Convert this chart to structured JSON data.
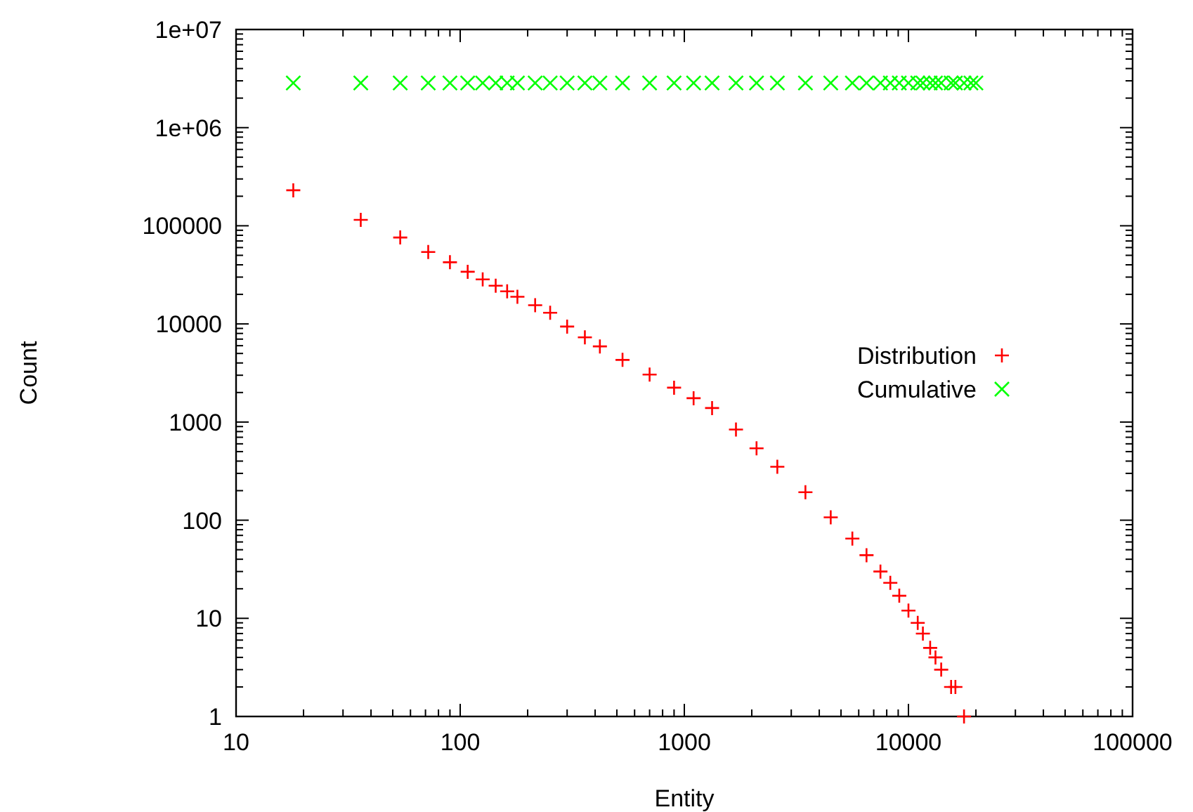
{
  "chart_data": {
    "type": "scatter",
    "xlabel": "Entity",
    "ylabel": "Count",
    "log": "xy",
    "grid": false,
    "legend": "right",
    "xlim": [
      10,
      100000
    ],
    "ylim": [
      1,
      10000000
    ],
    "xticks": [
      10,
      {
        "value": 20,
        "label": null
      },
      {
        "value": 30,
        "label": null
      },
      {
        "value": 40,
        "label": null
      },
      {
        "value": 50,
        "label": null
      },
      {
        "value": 60,
        "label": null
      },
      {
        "value": 70,
        "label": null
      },
      {
        "value": 80,
        "label": null
      },
      {
        "value": 90,
        "label": null
      },
      100,
      {
        "value": 200,
        "label": null
      },
      {
        "value": 300,
        "label": null
      },
      {
        "value": 400,
        "label": null
      },
      {
        "value": 500,
        "label": null
      },
      {
        "value": 600,
        "label": null
      },
      {
        "value": 700,
        "label": null
      },
      {
        "value": 800,
        "label": null
      },
      {
        "value": 900,
        "label": null
      },
      1000,
      {
        "value": 2000,
        "label": null
      },
      {
        "value": 3000,
        "label": null
      },
      {
        "value": 4000,
        "label": null
      },
      {
        "value": 5000,
        "label": null
      },
      {
        "value": 6000,
        "label": null
      },
      {
        "value": 7000,
        "label": null
      },
      {
        "value": 8000,
        "label": null
      },
      {
        "value": 9000,
        "label": null
      },
      10000,
      {
        "value": 20000,
        "label": null
      },
      {
        "value": 30000,
        "label": null
      },
      {
        "value": 40000,
        "label": null
      },
      {
        "value": 50000,
        "label": null
      },
      {
        "value": 60000,
        "label": null
      },
      {
        "value": 70000,
        "label": null
      },
      {
        "value": 80000,
        "label": null
      },
      {
        "value": 90000,
        "label": null
      },
      100000
    ],
    "yticks": [
      1,
      {
        "value": 2,
        "label": null
      },
      {
        "value": 3,
        "label": null
      },
      {
        "value": 4,
        "label": null
      },
      {
        "value": 5,
        "label": null
      },
      {
        "value": 6,
        "label": null
      },
      {
        "value": 7,
        "label": null
      },
      {
        "value": 8,
        "label": null
      },
      {
        "value": 9,
        "label": null
      },
      10,
      {
        "value": 20,
        "label": null
      },
      {
        "value": 30,
        "label": null
      },
      {
        "value": 40,
        "label": null
      },
      {
        "value": 50,
        "label": null
      },
      {
        "value": 60,
        "label": null
      },
      {
        "value": 70,
        "label": null
      },
      {
        "value": 80,
        "label": null
      },
      {
        "value": 90,
        "label": null
      },
      100,
      {
        "value": 200,
        "label": null
      },
      {
        "value": 300,
        "label": null
      },
      {
        "value": 400,
        "label": null
      },
      {
        "value": 500,
        "label": null
      },
      {
        "value": 600,
        "label": null
      },
      {
        "value": 700,
        "label": null
      },
      {
        "value": 800,
        "label": null
      },
      {
        "value": 900,
        "label": null
      },
      1000,
      {
        "value": 2000,
        "label": null
      },
      {
        "value": 3000,
        "label": null
      },
      {
        "value": 4000,
        "label": null
      },
      {
        "value": 5000,
        "label": null
      },
      {
        "value": 6000,
        "label": null
      },
      {
        "value": 7000,
        "label": null
      },
      {
        "value": 8000,
        "label": null
      },
      {
        "value": 9000,
        "label": null
      },
      10000,
      {
        "value": 20000,
        "label": null
      },
      {
        "value": 30000,
        "label": null
      },
      {
        "value": 40000,
        "label": null
      },
      {
        "value": 50000,
        "label": null
      },
      {
        "value": 60000,
        "label": null
      },
      {
        "value": 70000,
        "label": null
      },
      {
        "value": 80000,
        "label": null
      },
      {
        "value": 90000,
        "label": null
      },
      100000,
      {
        "value": 200000,
        "label": null
      },
      {
        "value": 300000,
        "label": null
      },
      {
        "value": 400000,
        "label": null
      },
      {
        "value": 500000,
        "label": null
      },
      {
        "value": 600000,
        "label": null
      },
      {
        "value": 700000,
        "label": null
      },
      {
        "value": 800000,
        "label": null
      },
      {
        "value": 900000,
        "label": null
      },
      {
        "value": 1000000,
        "label": "1e+06"
      },
      {
        "value": 2000000,
        "label": null
      },
      {
        "value": 3000000,
        "label": null
      },
      {
        "value": 4000000,
        "label": null
      },
      {
        "value": 5000000,
        "label": null
      },
      {
        "value": 6000000,
        "label": null
      },
      {
        "value": 7000000,
        "label": null
      },
      {
        "value": 8000000,
        "label": null
      },
      {
        "value": 9000000,
        "label": null
      },
      {
        "value": 10000000,
        "label": "1e+07"
      }
    ],
    "series": [
      {
        "name": "Distribution",
        "color": "#ff0000",
        "marker": "plus",
        "x": [
          18,
          36,
          54,
          72,
          90,
          108,
          126,
          144,
          162,
          180,
          216,
          252,
          300,
          360,
          420,
          530,
          700,
          900,
          1100,
          1330,
          1700,
          2100,
          2600,
          3470,
          4500,
          5620,
          6500,
          7500,
          8300,
          9100,
          10000,
          11000,
          11600,
          12500,
          13200,
          14000,
          15500,
          16200,
          17700
        ],
        "values": [
          230000,
          115000,
          76000,
          54000,
          42500,
          34000,
          28400,
          24500,
          21500,
          18900,
          15500,
          13000,
          9400,
          7300,
          5900,
          4300,
          3050,
          2240,
          1750,
          1390,
          840,
          540,
          350,
          193,
          107,
          65,
          44,
          30,
          23,
          17,
          12,
          9,
          7,
          5,
          4,
          3,
          2,
          2,
          1
        ]
      },
      {
        "name": "Cumulative",
        "color": "#00ff00",
        "marker": "cross",
        "x": [
          18,
          36,
          54,
          72,
          90,
          108,
          126,
          144,
          162,
          180,
          216,
          252,
          300,
          360,
          420,
          530,
          700,
          900,
          1100,
          1330,
          1700,
          2100,
          2600,
          3470,
          4500,
          5620,
          6500,
          7500,
          8300,
          9100,
          10000,
          11000,
          11600,
          12500,
          13200,
          14000,
          15500,
          16200,
          17700,
          19000,
          20000
        ],
        "values": [
          2850000,
          2850000,
          2850000,
          2850000,
          2850000,
          2850000,
          2850000,
          2850000,
          2850000,
          2850000,
          2850000,
          2850000,
          2850000,
          2850000,
          2850000,
          2850000,
          2850000,
          2850000,
          2850000,
          2850000,
          2850000,
          2850000,
          2850000,
          2850000,
          2850000,
          2850000,
          2850000,
          2850000,
          2850000,
          2850000,
          2850000,
          2850000,
          2850000,
          2850000,
          2850000,
          2850000,
          2850000,
          2850000,
          2850000,
          2850000,
          2850000
        ]
      }
    ]
  }
}
